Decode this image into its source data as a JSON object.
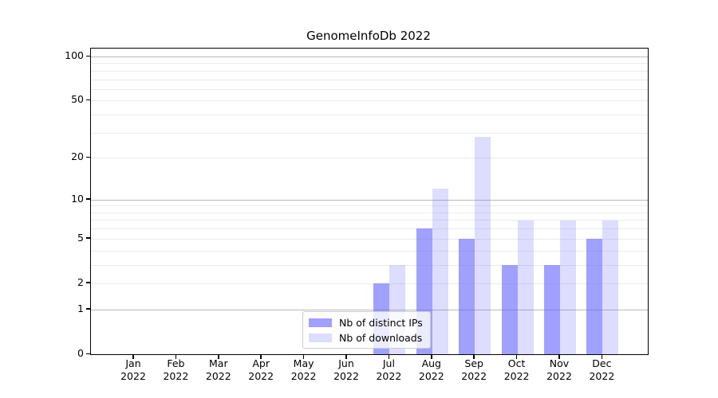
{
  "title": "GenomeInfoDb 2022",
  "chart_data": {
    "type": "bar",
    "categories": [
      "Jan",
      "Feb",
      "Mar",
      "Apr",
      "May",
      "Jun",
      "Jul",
      "Aug",
      "Sep",
      "Oct",
      "Nov",
      "Dec"
    ],
    "year_label": "2022",
    "series": [
      {
        "name": "Nb of distinct IPs",
        "values": [
          0,
          0,
          0,
          0,
          0,
          0,
          2,
          6,
          5,
          3,
          3,
          5
        ],
        "color": "rgba(102,102,255,0.62)"
      },
      {
        "name": "Nb of downloads",
        "values": [
          0,
          0,
          0,
          0,
          0,
          0,
          3,
          12,
          28,
          7,
          7,
          7
        ],
        "color": "rgba(102,102,255,0.22)"
      }
    ],
    "title": "GenomeInfoDb 2022",
    "xlabel": "",
    "ylabel": "",
    "yscale": "log1p",
    "ylim": [
      0,
      100
    ],
    "yticks": [
      0,
      1,
      2,
      5,
      10,
      20,
      50,
      100
    ],
    "major_gridlines": [
      1,
      10,
      100
    ],
    "minor_gridlines": [
      2,
      3,
      4,
      5,
      6,
      7,
      8,
      9,
      20,
      30,
      40,
      50,
      60,
      70,
      80,
      90
    ],
    "grid": true,
    "legend_position": "lower center-left inside plot",
    "axis_color": "#000000",
    "major_grid_color": "#b9b9b9",
    "minor_grid_color": "#ebebeb"
  }
}
